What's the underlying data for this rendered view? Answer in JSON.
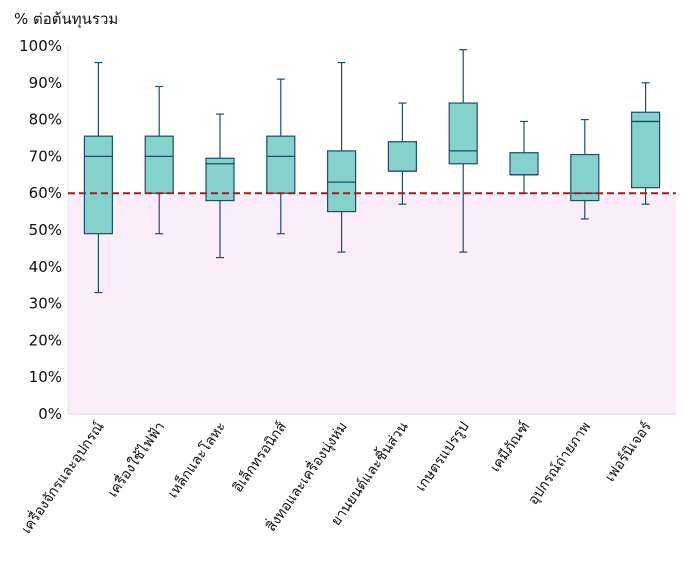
{
  "chart_data": {
    "type": "box",
    "ylabel": "% ต่อต้นทุนรวม",
    "ylim": [
      0,
      100
    ],
    "y_tick_labels": [
      "0%",
      "10%",
      "20%",
      "30%",
      "40%",
      "50%",
      "60%",
      "70%",
      "80%",
      "90%",
      "100%"
    ],
    "reference_line": {
      "value": 60,
      "style": "dashed",
      "color": "#a61c1c"
    },
    "shaded_region": {
      "from": 0,
      "to": 60,
      "color": "#fbeefa"
    },
    "categories": [
      "เครื่องจักรและอุปกรณ์",
      "เครื่องใช้ไฟฟ้า",
      "เหล็กและโลหะ",
      "อิเล็กทรอนิกส์",
      "สิ่งทอและเครื่องนุ่งห่ม",
      "ยานยนต์และชิ้นส่วน",
      "เกษตรแปรรูป",
      "เคมีภัณฑ์",
      "อุปกรณ์ถ่ายภาพ",
      "เฟอร์นิเจอร์"
    ],
    "boxes": [
      {
        "min": 33,
        "q1": 49,
        "median": 70,
        "q3": 75.5,
        "max": 95.5
      },
      {
        "min": 49,
        "q1": 60,
        "median": 70,
        "q3": 75.5,
        "max": 89
      },
      {
        "min": 42.5,
        "q1": 58,
        "median": 68,
        "q3": 69.5,
        "max": 81.5
      },
      {
        "min": 49,
        "q1": 60,
        "median": 70,
        "q3": 75.5,
        "max": 91
      },
      {
        "min": 44,
        "q1": 55,
        "median": 63,
        "q3": 71.5,
        "max": 95.5
      },
      {
        "min": 57,
        "q1": 66,
        "median": 66,
        "q3": 74,
        "max": 84.5
      },
      {
        "min": 44,
        "q1": 68,
        "median": 71.5,
        "q3": 84.5,
        "max": 99
      },
      {
        "min": 60,
        "q1": 65,
        "median": 65,
        "q3": 71,
        "max": 79.5
      },
      {
        "min": 53,
        "q1": 58,
        "median": 60,
        "q3": 70.5,
        "max": 80
      },
      {
        "min": 57,
        "q1": 61.5,
        "median": 79.5,
        "q3": 82,
        "max": 90
      }
    ],
    "colors": {
      "box_fill": "#85d1cb",
      "box_stroke": "#1d4d6b",
      "whisker": "#1d4d6b"
    },
    "grid": false,
    "legend": "none"
  }
}
